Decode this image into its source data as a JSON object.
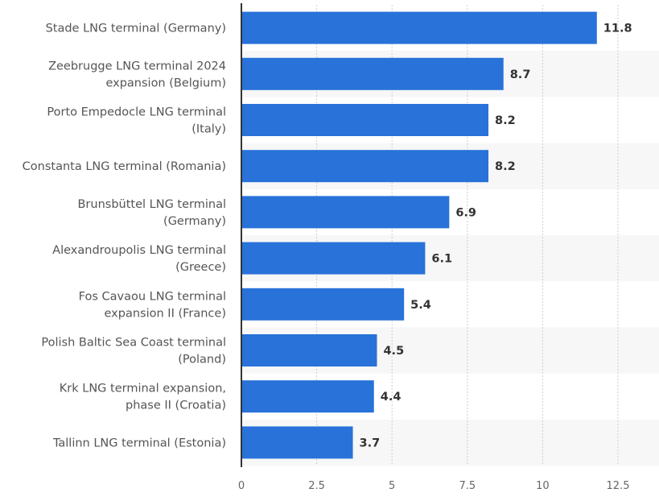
{
  "chart_data": {
    "type": "bar",
    "orientation": "horizontal",
    "title": "",
    "xlabel": "",
    "ylabel": "",
    "categories": [
      [
        "Stade LNG terminal (Germany)"
      ],
      [
        "Zeebrugge LNG terminal 2024",
        "expansion (Belgium)"
      ],
      [
        "Porto Empedocle LNG terminal",
        "(Italy)"
      ],
      [
        "Constanta LNG terminal (Romania)"
      ],
      [
        "Brunsbüttel LNG terminal",
        "(Germany)"
      ],
      [
        "Alexandroupolis LNG terminal",
        "(Greece)"
      ],
      [
        "Fos Cavaou LNG terminal",
        "expansion II (France)"
      ],
      [
        "Polish Baltic Sea Coast terminal",
        "(Poland)"
      ],
      [
        "Krk LNG terminal expansion,",
        "phase II (Croatia)"
      ],
      [
        "Tallinn LNG terminal (Estonia)"
      ]
    ],
    "values": [
      11.8,
      8.7,
      8.2,
      8.2,
      6.9,
      6.1,
      5.4,
      4.5,
      4.4,
      3.7
    ],
    "value_labels": [
      "11.8",
      "8.7",
      "8.2",
      "8.2",
      "6.9",
      "6.1",
      "5.4",
      "4.5",
      "4.4",
      "3.7"
    ],
    "xlim": [
      0,
      13.5
    ],
    "xticks": [
      0,
      2.5,
      5,
      7.5,
      10,
      12.5
    ],
    "xtick_labels": [
      "0",
      "2.5",
      "5",
      "7.5",
      "10",
      "12.5"
    ],
    "grid": true,
    "legend": "none",
    "colors": {
      "bar": "#2872d9",
      "band": "#f7f7f7",
      "grid": "#cccccc",
      "axis": "#333333"
    }
  }
}
